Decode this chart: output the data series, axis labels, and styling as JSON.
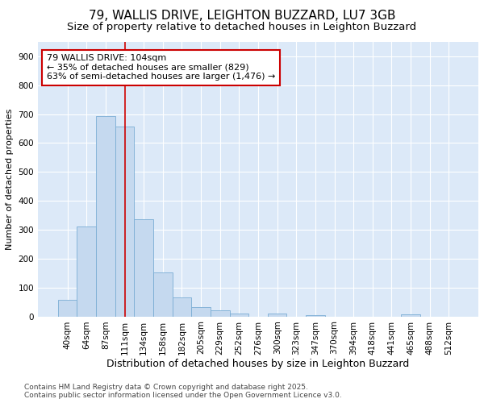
{
  "title": "79, WALLIS DRIVE, LEIGHTON BUZZARD, LU7 3GB",
  "subtitle": "Size of property relative to detached houses in Leighton Buzzard",
  "xlabel": "Distribution of detached houses by size in Leighton Buzzard",
  "ylabel": "Number of detached properties",
  "categories": [
    "40sqm",
    "64sqm",
    "87sqm",
    "111sqm",
    "134sqm",
    "158sqm",
    "182sqm",
    "205sqm",
    "229sqm",
    "252sqm",
    "276sqm",
    "300sqm",
    "323sqm",
    "347sqm",
    "370sqm",
    "394sqm",
    "418sqm",
    "441sqm",
    "465sqm",
    "488sqm",
    "512sqm"
  ],
  "values": [
    57,
    312,
    693,
    657,
    335,
    152,
    65,
    32,
    20,
    11,
    0,
    9,
    0,
    5,
    0,
    0,
    0,
    0,
    7,
    0,
    0
  ],
  "bar_color": "#c5d9ef",
  "bar_edge_color": "#7aadd4",
  "vline_x": 3,
  "vline_color": "#cc0000",
  "annotation_text": "79 WALLIS DRIVE: 104sqm\n← 35% of detached houses are smaller (829)\n63% of semi-detached houses are larger (1,476) →",
  "annotation_box_color": "#cc0000",
  "ylim": [
    0,
    950
  ],
  "yticks": [
    0,
    100,
    200,
    300,
    400,
    500,
    600,
    700,
    800,
    900
  ],
  "background_color": "#dce9f8",
  "grid_color": "#ffffff",
  "footer_line1": "Contains HM Land Registry data © Crown copyright and database right 2025.",
  "footer_line2": "Contains public sector information licensed under the Open Government Licence v3.0.",
  "title_fontsize": 11,
  "subtitle_fontsize": 9.5,
  "xlabel_fontsize": 9,
  "ylabel_fontsize": 8,
  "tick_fontsize": 7.5,
  "annotation_fontsize": 8,
  "footer_fontsize": 6.5
}
